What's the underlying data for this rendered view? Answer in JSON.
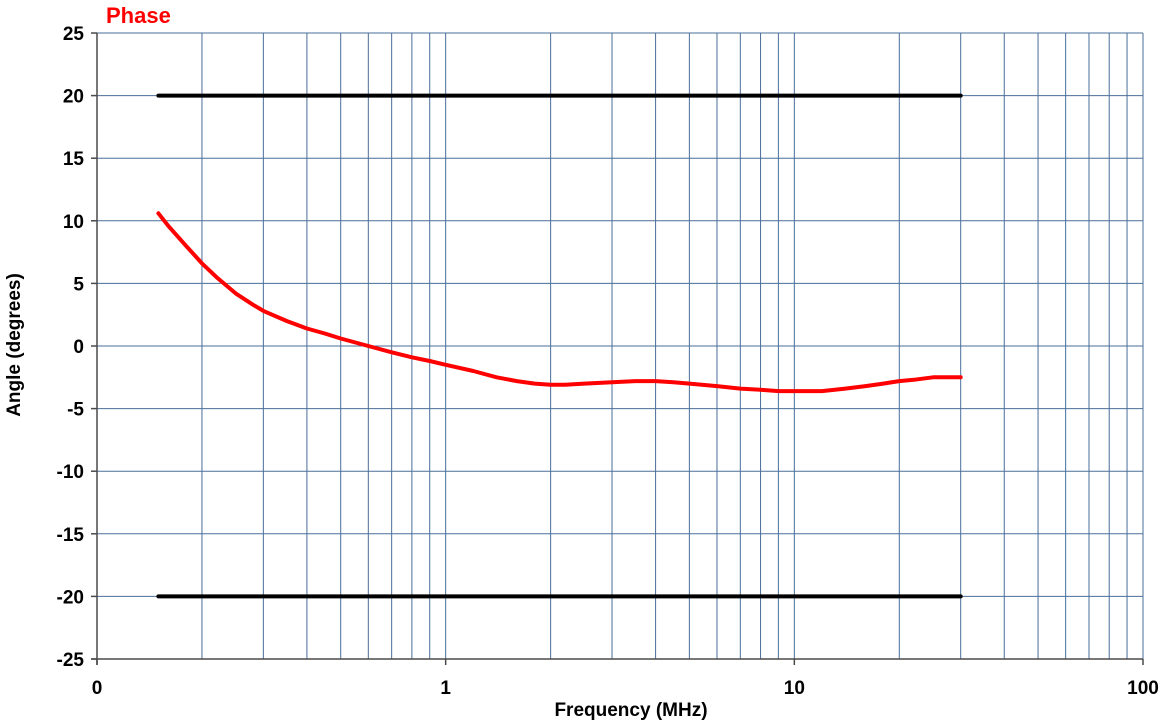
{
  "chart_data": {
    "type": "line",
    "title": "Phase",
    "xlabel": "Frequency (MHz)",
    "ylabel": "Angle (degrees)",
    "x_scale": "log",
    "xlim": [
      0.1,
      100
    ],
    "ylim": [
      -25,
      25
    ],
    "x_tick_values": [
      0.1,
      1,
      10,
      100
    ],
    "x_tick_labels": [
      "0",
      "1",
      "10",
      "100"
    ],
    "y_ticks": [
      25,
      20,
      15,
      10,
      5,
      0,
      -5,
      -10,
      -15,
      -20,
      -25
    ],
    "grid": true,
    "colors": {
      "phase": "#ff0000",
      "limits": "#000000",
      "grid": "#4a6e9a"
    },
    "series": [
      {
        "x": [
          0.15,
          0.16,
          0.18,
          0.2,
          0.22,
          0.25,
          0.28,
          0.3,
          0.35,
          0.4,
          0.45,
          0.5,
          0.6,
          0.7,
          0.8,
          0.9,
          1.0,
          1.2,
          1.4,
          1.6,
          1.8,
          2.0,
          2.2,
          2.5,
          3.0,
          3.5,
          4.0,
          4.5,
          5.0,
          6.0,
          7.0,
          8.0,
          9.0,
          10,
          12,
          14,
          16,
          18,
          20,
          22,
          25,
          28,
          30
        ],
        "y": [
          10.6,
          9.6,
          8.0,
          6.6,
          5.5,
          4.2,
          3.3,
          2.8,
          2.0,
          1.4,
          1.0,
          0.6,
          0.0,
          -0.5,
          -0.9,
          -1.2,
          -1.5,
          -2.0,
          -2.5,
          -2.8,
          -3.0,
          -3.1,
          -3.1,
          -3.0,
          -2.9,
          -2.8,
          -2.8,
          -2.9,
          -3.0,
          -3.2,
          -3.4,
          -3.5,
          -3.6,
          -3.6,
          -3.6,
          -3.4,
          -3.2,
          -3.0,
          -2.8,
          -2.7,
          -2.5,
          -2.5,
          -2.5
        ]
      },
      {
        "x": [
          0.15,
          30
        ],
        "y": [
          20,
          20
        ]
      },
      {
        "x": [
          0.15,
          30
        ],
        "y": [
          -20,
          -20
        ]
      }
    ]
  }
}
